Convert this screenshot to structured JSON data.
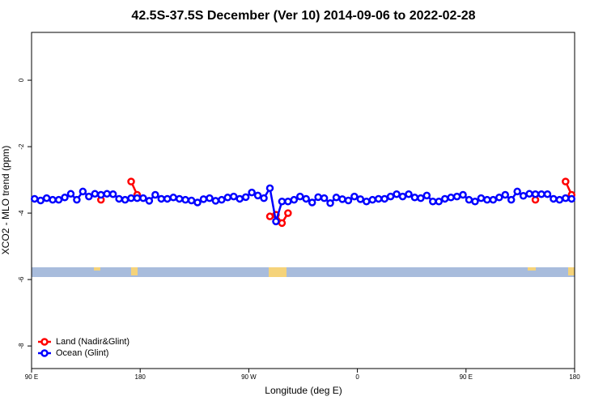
{
  "chart_data": {
    "type": "line",
    "title": "42.5S-37.5S December (Ver 10)   2014-09-06 to 2022-02-28",
    "xlabel": "Longitude (deg E)",
    "ylabel": "XCO2 - MLO trend (ppm)",
    "x": [
      92.5,
      97.5,
      102.5,
      107.5,
      112.5,
      117.5,
      122.5,
      127.5,
      132.5,
      137.5,
      142.5,
      147.5,
      152.5,
      157.5,
      162.5,
      167.5,
      172.5,
      177.5,
      182.5,
      187.5,
      192.5,
      197.5,
      202.5,
      207.5,
      212.5,
      217.5,
      222.5,
      227.5,
      232.5,
      237.5,
      242.5,
      247.5,
      252.5,
      257.5,
      262.5,
      267.5,
      272.5,
      277.5,
      282.5,
      287.5,
      292.5,
      297.5,
      302.5,
      307.5,
      312.5,
      317.5,
      322.5,
      327.5,
      332.5,
      337.5,
      342.5,
      347.5,
      352.5,
      357.5,
      362.5,
      367.5,
      372.5,
      377.5,
      382.5,
      387.5,
      392.5,
      397.5,
      402.5,
      407.5,
      412.5,
      417.5,
      422.5,
      427.5,
      432.5,
      437.5,
      442.5,
      447.5,
      452.5,
      457.5,
      462.5,
      467.5,
      472.5,
      477.5,
      482.5,
      487.5,
      492.5,
      497.5,
      502.5,
      507.5,
      512.5,
      517.5,
      522.5,
      527.5,
      532.5,
      537.5
    ],
    "series": [
      {
        "name": "Land (Nadir&Glint)",
        "color": "#ff0000",
        "values": [
          null,
          null,
          null,
          null,
          null,
          null,
          null,
          null,
          null,
          null,
          null,
          -3.6,
          null,
          null,
          null,
          null,
          -3.05,
          -3.45,
          null,
          null,
          null,
          null,
          null,
          null,
          null,
          null,
          null,
          null,
          null,
          null,
          null,
          null,
          null,
          null,
          null,
          null,
          null,
          null,
          null,
          -4.1,
          -4.05,
          -4.3,
          -4.0,
          null,
          null,
          null,
          null,
          null,
          null,
          null,
          null,
          null,
          null,
          null,
          null,
          null,
          null,
          null,
          null,
          null,
          null,
          null,
          null,
          null,
          null,
          null,
          null,
          null,
          null,
          null,
          null,
          null,
          null,
          null,
          null,
          null,
          null,
          null,
          null,
          null,
          null,
          null,
          null,
          -3.6,
          null,
          null,
          null,
          null,
          -3.05,
          -3.45
        ]
      },
      {
        "name": "Ocean (Glint)",
        "color": "#0000ff",
        "values": [
          -3.57,
          -3.62,
          -3.55,
          -3.6,
          -3.6,
          -3.53,
          -3.42,
          -3.6,
          -3.35,
          -3.5,
          -3.42,
          -3.45,
          -3.42,
          -3.43,
          -3.57,
          -3.6,
          -3.55,
          -3.55,
          -3.55,
          -3.63,
          -3.45,
          -3.57,
          -3.57,
          -3.53,
          -3.57,
          -3.6,
          -3.62,
          -3.68,
          -3.58,
          -3.55,
          -3.63,
          -3.6,
          -3.53,
          -3.5,
          -3.57,
          -3.52,
          -3.38,
          -3.47,
          -3.55,
          -3.25,
          -4.25,
          -3.65,
          -3.65,
          -3.6,
          -3.5,
          -3.57,
          -3.68,
          -3.52,
          -3.55,
          -3.7,
          -3.53,
          -3.58,
          -3.62,
          -3.5,
          -3.58,
          -3.65,
          -3.6,
          -3.57,
          -3.57,
          -3.5,
          -3.43,
          -3.5,
          -3.43,
          -3.53,
          -3.55,
          -3.47,
          -3.65,
          -3.65,
          -3.57,
          -3.53,
          -3.5,
          -3.45,
          -3.6,
          -3.65,
          -3.55,
          -3.6,
          -3.6,
          -3.53,
          -3.45,
          -3.6,
          -3.35,
          -3.48,
          -3.42,
          -3.43,
          -3.43,
          -3.43,
          -3.57,
          -3.6,
          -3.55,
          -3.57
        ]
      }
    ],
    "xlim": [
      90,
      540
    ],
    "ylim": [
      -8.68,
      1.44
    ],
    "xticks": [
      {
        "value": 90,
        "label": "90 E"
      },
      180,
      {
        "value": 270,
        "label": "90 W"
      },
      {
        "value": 360,
        "label": "0"
      },
      {
        "value": 450,
        "label": "90 E"
      },
      {
        "value": 540,
        "label": "180"
      }
    ],
    "yticks": [
      0,
      -2,
      -4,
      -6,
      -8
    ],
    "legend": "bottom-left"
  }
}
